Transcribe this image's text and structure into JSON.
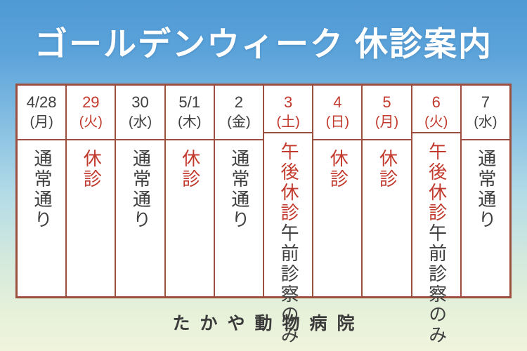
{
  "title": "ゴールデンウィーク 休診案内",
  "footer": {
    "clinic_name": "たかや動物病院"
  },
  "colors": {
    "accent_red": "#c23a2d",
    "text_dark": "#3f3f3f",
    "border": "#9d4f3f",
    "cell_bg": "#ffffff",
    "title_color": "#ffffff"
  },
  "schedule": {
    "columns": [
      {
        "date": "4/28",
        "day": "(月)",
        "header_red": false,
        "lines": [
          {
            "text": "通常通り",
            "red": false
          }
        ]
      },
      {
        "date": "29",
        "day": "(火)",
        "header_red": true,
        "lines": [
          {
            "text": "休診",
            "red": true
          }
        ]
      },
      {
        "date": "30",
        "day": "(水)",
        "header_red": false,
        "lines": [
          {
            "text": "通常通り",
            "red": false
          }
        ]
      },
      {
        "date": "5/1",
        "day": "(木)",
        "header_red": false,
        "lines": [
          {
            "text": "休診",
            "red": true
          }
        ]
      },
      {
        "date": "2",
        "day": "(金)",
        "header_red": false,
        "lines": [
          {
            "text": "通常通り",
            "red": false
          }
        ]
      },
      {
        "date": "3",
        "day": "(土)",
        "header_red": true,
        "lines": [
          {
            "text": "午後休診",
            "red": true
          },
          {
            "text": "午前診察のみ",
            "red": false
          }
        ]
      },
      {
        "date": "4",
        "day": "(日)",
        "header_red": true,
        "lines": [
          {
            "text": "休診",
            "red": true
          }
        ]
      },
      {
        "date": "5",
        "day": "(月)",
        "header_red": true,
        "lines": [
          {
            "text": "休診",
            "red": true
          }
        ]
      },
      {
        "date": "6",
        "day": "(火)",
        "header_red": true,
        "lines": [
          {
            "text": "午後休診",
            "red": true
          },
          {
            "text": "午前診察のみ",
            "red": false
          }
        ]
      },
      {
        "date": "7",
        "day": "(水)",
        "header_red": false,
        "lines": [
          {
            "text": "通常通り",
            "red": false
          }
        ]
      }
    ]
  }
}
